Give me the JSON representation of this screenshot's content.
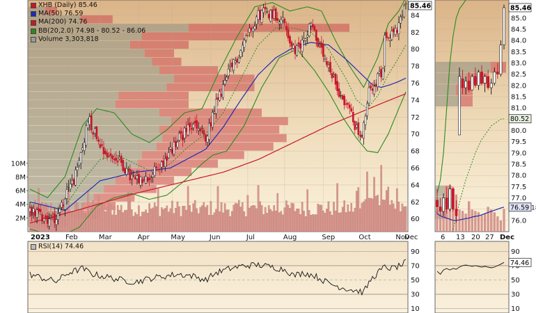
{
  "chart_data": {
    "type": "candlestick",
    "symbol": "XHB",
    "interval": "Daily",
    "last_price": 85.46,
    "main_panel": {
      "y_range": [
        58.5,
        85.8
      ],
      "y_ticks": [
        60,
        62,
        64,
        66,
        68,
        70,
        72,
        74,
        76,
        78,
        80,
        82,
        84
      ],
      "volume_axis_ticks": [
        "2M",
        "4M",
        "6M",
        "8M",
        "10M"
      ],
      "volume_axis_max_m": 11.2,
      "x_tick_labels": [
        "2023",
        "Feb",
        "Mar",
        "Apr",
        "May",
        "Jun",
        "Jul",
        "Aug",
        "Sep",
        "Oct",
        "Nov",
        "Dec"
      ],
      "legend": {
        "title": "XHB (Daily) 85.46",
        "ma50": "MA(50) 76.59",
        "ma200": "MA(200) 74.76",
        "bb": "BB(20,2.0) 74.98 - 80.52 - 86.06",
        "volume": "Volume 3,303,818"
      },
      "price_path": [
        [
          0,
          61.2
        ],
        [
          5,
          60.5
        ],
        [
          10,
          59.8
        ],
        [
          15,
          60.3
        ],
        [
          22,
          63.5
        ],
        [
          27,
          65.5
        ],
        [
          31,
          69.5
        ],
        [
          33,
          72.0
        ],
        [
          37,
          70.2
        ],
        [
          40,
          69.0
        ],
        [
          44,
          67.5
        ],
        [
          48,
          67.2
        ],
        [
          52,
          66.5
        ],
        [
          57,
          65.0
        ],
        [
          62,
          64.3
        ],
        [
          67,
          64.6
        ],
        [
          72,
          65.8
        ],
        [
          77,
          67.0
        ],
        [
          82,
          68.5
        ],
        [
          86,
          69.8
        ],
        [
          90,
          70.5
        ],
        [
          94,
          71.0
        ],
        [
          98,
          70.2
        ],
        [
          100,
          69.0
        ],
        [
          103,
          71.5
        ],
        [
          106,
          73.5
        ],
        [
          110,
          75.5
        ],
        [
          114,
          77.5
        ],
        [
          118,
          79.0
        ],
        [
          122,
          81.0
        ],
        [
          126,
          82.8
        ],
        [
          130,
          84.0
        ],
        [
          134,
          84.5
        ],
        [
          138,
          84.2
        ],
        [
          142,
          83.8
        ],
        [
          145,
          83.0
        ],
        [
          148,
          81.0
        ],
        [
          151,
          79.5
        ],
        [
          154,
          80.5
        ],
        [
          157,
          81.5
        ],
        [
          160,
          83.5
        ],
        [
          162,
          82.0
        ],
        [
          165,
          80.0
        ],
        [
          168,
          78.5
        ],
        [
          171,
          77.0
        ],
        [
          174,
          76.0
        ],
        [
          177,
          74.5
        ],
        [
          180,
          73.5
        ],
        [
          183,
          72.5
        ],
        [
          186,
          70.5
        ],
        [
          189,
          69.5
        ],
        [
          191,
          72.0
        ],
        [
          193,
          75.0
        ],
        [
          196,
          76.0
        ],
        [
          199,
          76.8
        ],
        [
          201,
          77.5
        ],
        [
          202,
          82.0
        ],
        [
          204,
          82.0
        ],
        [
          206,
          81.8
        ],
        [
          208,
          82.2
        ],
        [
          210,
          82.5
        ],
        [
          212,
          84.0
        ],
        [
          214,
          85.46
        ]
      ],
      "ma50_path": [
        [
          0,
          62.0
        ],
        [
          20,
          61.0
        ],
        [
          40,
          64.5
        ],
        [
          60,
          65.5
        ],
        [
          80,
          66.0
        ],
        [
          100,
          68.2
        ],
        [
          110,
          70.8
        ],
        [
          120,
          74.0
        ],
        [
          130,
          77.0
        ],
        [
          140,
          79.0
        ],
        [
          150,
          80.2
        ],
        [
          160,
          80.8
        ],
        [
          170,
          80.5
        ],
        [
          180,
          78.8
        ],
        [
          190,
          76.8
        ],
        [
          195,
          75.8
        ],
        [
          200,
          75.5
        ],
        [
          205,
          75.8
        ],
        [
          210,
          76.2
        ],
        [
          214,
          76.59
        ]
      ],
      "ma200_path": [
        [
          0,
          59.5
        ],
        [
          30,
          61.2
        ],
        [
          60,
          63.0
        ],
        [
          90,
          64.5
        ],
        [
          110,
          65.5
        ],
        [
          130,
          67.0
        ],
        [
          150,
          69.0
        ],
        [
          170,
          71.0
        ],
        [
          185,
          72.3
        ],
        [
          200,
          73.6
        ],
        [
          214,
          74.76
        ]
      ],
      "bb_upper_path": [
        [
          0,
          63.5
        ],
        [
          10,
          62.5
        ],
        [
          20,
          65.0
        ],
        [
          30,
          71.0
        ],
        [
          38,
          73.0
        ],
        [
          48,
          72.5
        ],
        [
          58,
          70.0
        ],
        [
          68,
          69.0
        ],
        [
          78,
          70.5
        ],
        [
          88,
          72.5
        ],
        [
          98,
          73.0
        ],
        [
          108,
          77.5
        ],
        [
          118,
          81.5
        ],
        [
          128,
          85.0
        ],
        [
          138,
          85.5
        ],
        [
          148,
          84.5
        ],
        [
          158,
          85.0
        ],
        [
          166,
          84.5
        ],
        [
          174,
          81.0
        ],
        [
          182,
          78.0
        ],
        [
          190,
          75.5
        ],
        [
          198,
          79.0
        ],
        [
          204,
          83.0
        ],
        [
          210,
          84.5
        ],
        [
          214,
          86.06
        ]
      ],
      "bb_middle_path": [
        [
          0,
          61.0
        ],
        [
          10,
          60.2
        ],
        [
          20,
          61.5
        ],
        [
          30,
          64.5
        ],
        [
          40,
          67.0
        ],
        [
          50,
          67.5
        ],
        [
          60,
          66.5
        ],
        [
          70,
          65.5
        ],
        [
          80,
          66.5
        ],
        [
          90,
          68.5
        ],
        [
          100,
          70.0
        ],
        [
          110,
          72.5
        ],
        [
          120,
          76.5
        ],
        [
          130,
          80.5
        ],
        [
          140,
          82.5
        ],
        [
          150,
          82.5
        ],
        [
          160,
          82.0
        ],
        [
          170,
          80.0
        ],
        [
          180,
          76.5
        ],
        [
          186,
          74.0
        ],
        [
          192,
          73.0
        ],
        [
          198,
          74.5
        ],
        [
          204,
          77.0
        ],
        [
          210,
          79.0
        ],
        [
          214,
          80.52
        ]
      ],
      "bb_lower_path": [
        [
          0,
          58.8
        ],
        [
          10,
          58.2
        ],
        [
          20,
          58.2
        ],
        [
          28,
          59.0
        ],
        [
          38,
          61.5
        ],
        [
          48,
          62.5
        ],
        [
          58,
          63.0
        ],
        [
          68,
          62.3
        ],
        [
          78,
          62.8
        ],
        [
          88,
          64.5
        ],
        [
          98,
          66.5
        ],
        [
          104,
          67.5
        ],
        [
          112,
          68.0
        ],
        [
          122,
          71.0
        ],
        [
          132,
          75.5
        ],
        [
          142,
          79.0
        ],
        [
          152,
          80.0
        ],
        [
          162,
          77.5
        ],
        [
          170,
          75.0
        ],
        [
          178,
          72.0
        ],
        [
          186,
          69.5
        ],
        [
          192,
          68.0
        ],
        [
          198,
          67.8
        ],
        [
          204,
          70.0
        ],
        [
          210,
          73.0
        ],
        [
          214,
          74.98
        ]
      ],
      "volume_profile": [
        {
          "price": 59.5,
          "up": 16,
          "down": 12
        },
        {
          "price": 60.5,
          "up": 30,
          "down": 20
        },
        {
          "price": 61.5,
          "up": 38,
          "down": 22
        },
        {
          "price": 62.5,
          "up": 45,
          "down": 28
        },
        {
          "price": 63.5,
          "up": 52,
          "down": 36
        },
        {
          "price": 64.5,
          "up": 60,
          "down": 40
        },
        {
          "price": 65.5,
          "up": 68,
          "down": 44
        },
        {
          "price": 66.5,
          "up": 75,
          "down": 55
        },
        {
          "price": 67.5,
          "up": 78,
          "down": 70
        },
        {
          "price": 68.5,
          "up": 88,
          "down": 80
        },
        {
          "price": 69.5,
          "up": 92,
          "down": 85
        },
        {
          "price": 70.5,
          "up": 90,
          "down": 82
        },
        {
          "price": 71.5,
          "up": 98,
          "down": 80
        },
        {
          "price": 72.5,
          "up": 90,
          "down": 70
        },
        {
          "price": 73.5,
          "up": 60,
          "down": 50
        },
        {
          "price": 74.5,
          "up": 62,
          "down": 48
        },
        {
          "price": 75.5,
          "up": 95,
          "down": 60
        },
        {
          "price": 76.5,
          "up": 100,
          "down": 55
        },
        {
          "price": 77.5,
          "up": 90,
          "down": 40
        },
        {
          "price": 78.5,
          "up": 85,
          "down": 20
        },
        {
          "price": 79.5,
          "up": 80,
          "down": 20
        },
        {
          "price": 80.5,
          "up": 70,
          "down": 40
        },
        {
          "price": 81.5,
          "up": 78,
          "down": 70
        },
        {
          "price": 82.5,
          "up": 110,
          "down": 110
        },
        {
          "price": 83.5,
          "up": 36,
          "down": 22
        },
        {
          "price": 84.5,
          "up": 12,
          "down": 8
        }
      ]
    },
    "rsi_panel": {
      "label": "RSI(14) 74.46",
      "value": 74.46,
      "y_ticks": [
        10,
        30,
        50,
        70,
        90
      ],
      "overbought": 70,
      "oversold": 30
    },
    "zoom_panel": {
      "y_range": [
        75.5,
        85.8
      ],
      "y_ticks": [
        "76.0",
        "76.5",
        "77.0",
        "77.5",
        "78.0",
        "78.5",
        "79.0",
        "79.5",
        "80.0",
        "80.5",
        "81.0",
        "81.5",
        "82.0",
        "82.5",
        "83.0",
        "83.5",
        "84.0",
        "84.5",
        "85.0"
      ],
      "x_tick_labels": [
        "6",
        "13",
        "20",
        "27",
        "Dec"
      ],
      "price_labels": [
        "85.46",
        "80.52",
        "76.59"
      ],
      "cut_label": "18",
      "rsi_label": "74.46",
      "rsi_ticks": [
        10,
        30,
        50,
        70,
        90
      ]
    },
    "colors": {
      "up": "#ffffff",
      "down": "#c8162b",
      "ma50": "#1f2bb0",
      "ma200": "#c8162b",
      "bb": "#2b8a1e",
      "volume_bar": "#d99890",
      "profile_up": "#8e8e80",
      "profile_down": "#cc4a50"
    }
  }
}
